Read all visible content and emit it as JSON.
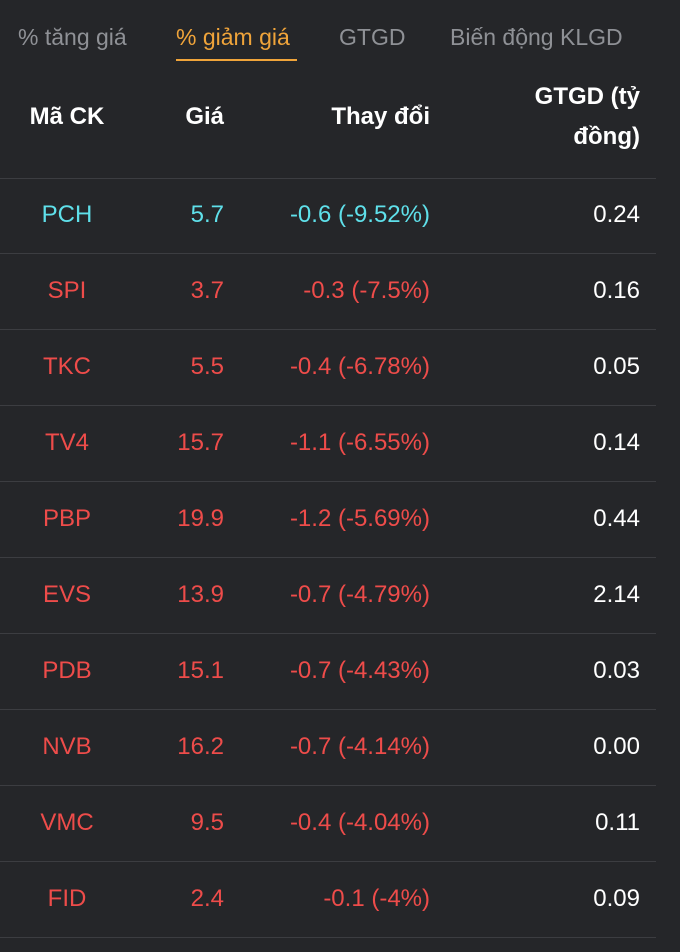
{
  "tabs": [
    {
      "label": "% tăng giá",
      "active": false
    },
    {
      "label": "% giảm giá",
      "active": true
    },
    {
      "label": "GTGD",
      "active": false
    },
    {
      "label": "Biến động KLGD",
      "active": false
    }
  ],
  "columns": {
    "symbol": "Mã CK",
    "price": "Giá",
    "change": "Thay đổi",
    "value_line1": "GTGD (tỷ",
    "value_line2": "đồng)"
  },
  "colors": {
    "floor": "#5fe0ea",
    "down": "#ee4c4a",
    "accent": "#f0a43a",
    "text": "#ffffff",
    "muted": "#8f9196",
    "background": "#252629"
  },
  "rows": [
    {
      "symbol": "PCH",
      "price": "5.7",
      "change": "-0.6 (-9.52%)",
      "value": "0.24",
      "status": "floor"
    },
    {
      "symbol": "SPI",
      "price": "3.7",
      "change": "-0.3 (-7.5%)",
      "value": "0.16",
      "status": "down"
    },
    {
      "symbol": "TKC",
      "price": "5.5",
      "change": "-0.4 (-6.78%)",
      "value": "0.05",
      "status": "down"
    },
    {
      "symbol": "TV4",
      "price": "15.7",
      "change": "-1.1 (-6.55%)",
      "value": "0.14",
      "status": "down"
    },
    {
      "symbol": "PBP",
      "price": "19.9",
      "change": "-1.2 (-5.69%)",
      "value": "0.44",
      "status": "down"
    },
    {
      "symbol": "EVS",
      "price": "13.9",
      "change": "-0.7 (-4.79%)",
      "value": "2.14",
      "status": "down"
    },
    {
      "symbol": "PDB",
      "price": "15.1",
      "change": "-0.7 (-4.43%)",
      "value": "0.03",
      "status": "down"
    },
    {
      "symbol": "NVB",
      "price": "16.2",
      "change": "-0.7 (-4.14%)",
      "value": "0.00",
      "status": "down"
    },
    {
      "symbol": "VMC",
      "price": "9.5",
      "change": "-0.4 (-4.04%)",
      "value": "0.11",
      "status": "down"
    },
    {
      "symbol": "FID",
      "price": "2.4",
      "change": "-0.1 (-4%)",
      "value": "0.09",
      "status": "down"
    }
  ]
}
